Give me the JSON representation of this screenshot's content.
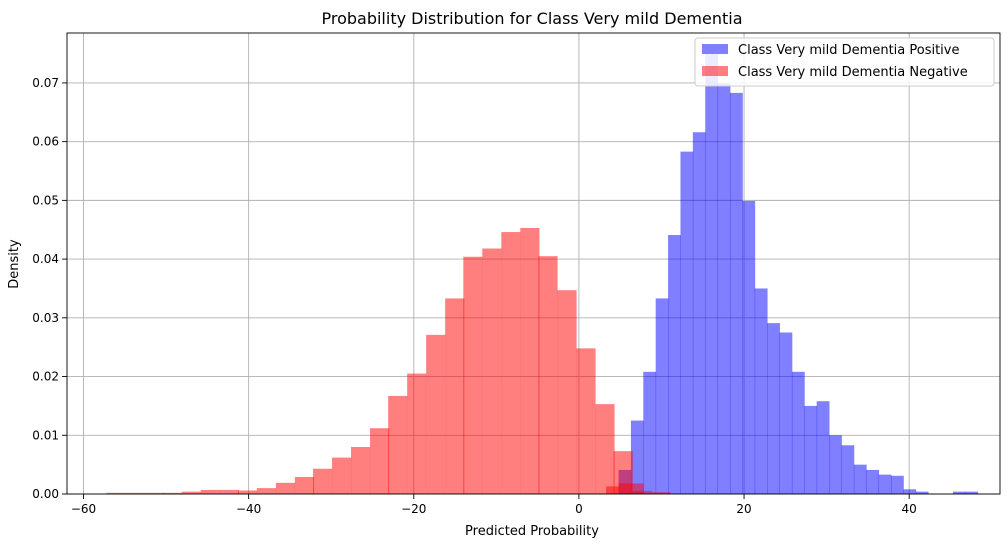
{
  "chart_data": {
    "type": "histogram",
    "title": "Probability Distribution for Class Very mild Dementia",
    "xlabel": "Predicted Probability",
    "ylabel": "Density",
    "xlim": [
      -62,
      51
    ],
    "ylim": [
      0,
      0.0785
    ],
    "xticks": [
      -60,
      -40,
      -20,
      0,
      20,
      40
    ],
    "xtick_labels": [
      "−60",
      "−40",
      "−20",
      "0",
      "20",
      "40"
    ],
    "yticks": [
      0,
      0.01,
      0.02,
      0.03,
      0.04,
      0.05,
      0.06,
      0.07
    ],
    "ytick_labels": [
      "0.00",
      "0.01",
      "0.02",
      "0.03",
      "0.04",
      "0.05",
      "0.06",
      "0.07"
    ],
    "grid": true,
    "legend_position": "top-right",
    "series": [
      {
        "name": "Class Very mild Dementia Positive",
        "color": "#0000ff",
        "alpha": 0.5,
        "bin_width": 1.5,
        "bins": [
          [
            4.8,
            0.0041
          ],
          [
            6.3,
            0.0125
          ],
          [
            7.8,
            0.0208
          ],
          [
            9.3,
            0.0333
          ],
          [
            10.8,
            0.0441
          ],
          [
            12.3,
            0.0583
          ],
          [
            13.8,
            0.0616
          ],
          [
            15.3,
            0.0749
          ],
          [
            16.8,
            0.0699
          ],
          [
            18.3,
            0.0683
          ],
          [
            19.8,
            0.0499
          ],
          [
            21.3,
            0.035
          ],
          [
            22.8,
            0.0291
          ],
          [
            24.3,
            0.0275
          ],
          [
            25.8,
            0.0208
          ],
          [
            27.3,
            0.015
          ],
          [
            28.8,
            0.0158
          ],
          [
            30.3,
            0.01
          ],
          [
            31.8,
            0.0083
          ],
          [
            33.3,
            0.005
          ],
          [
            34.8,
            0.0041
          ],
          [
            36.3,
            0.0033
          ],
          [
            37.8,
            0.0031
          ],
          [
            39.3,
            0.0008
          ],
          [
            40.8,
            0.0004
          ],
          [
            45.3,
            0.0004
          ],
          [
            46.8,
            0.0004
          ]
        ]
      },
      {
        "name": "Class Very mild Dementia Negative",
        "color": "#ff0000",
        "alpha": 0.5,
        "bin_width": 2.27,
        "bins": [
          [
            -57.2,
            0.0002
          ],
          [
            -54.9,
            0.0002
          ],
          [
            -52.6,
            0.0002
          ],
          [
            -50.4,
            0.0002
          ],
          [
            -48.1,
            0.0004
          ],
          [
            -45.8,
            0.0007
          ],
          [
            -43.5,
            0.0007
          ],
          [
            -41.3,
            0.0006
          ],
          [
            -39.0,
            0.001
          ],
          [
            -36.7,
            0.0019
          ],
          [
            -34.4,
            0.0029
          ],
          [
            -32.2,
            0.0043
          ],
          [
            -29.9,
            0.0062
          ],
          [
            -27.6,
            0.008
          ],
          [
            -25.3,
            0.0112
          ],
          [
            -23.1,
            0.0167
          ],
          [
            -20.8,
            0.0205
          ],
          [
            -18.5,
            0.0271
          ],
          [
            -16.2,
            0.0333
          ],
          [
            -14.0,
            0.0404
          ],
          [
            -11.7,
            0.0418
          ],
          [
            -9.4,
            0.0446
          ],
          [
            -7.1,
            0.0453
          ],
          [
            -4.9,
            0.0405
          ],
          [
            -2.6,
            0.0347
          ],
          [
            -0.3,
            0.0248
          ],
          [
            2.0,
            0.0153
          ],
          [
            4.2,
            0.0073
          ],
          [
            6.5,
            0.0005
          ],
          [
            8.8,
            0.0003
          ]
        ]
      },
      {
        "name": "",
        "color": "#ff0000",
        "alpha": 0.5,
        "bin_width": 1.5,
        "bins": [
          [
            3.3,
            0.0013
          ],
          [
            4.8,
            0.0018
          ],
          [
            6.3,
            0.0018
          ]
        ]
      }
    ]
  }
}
